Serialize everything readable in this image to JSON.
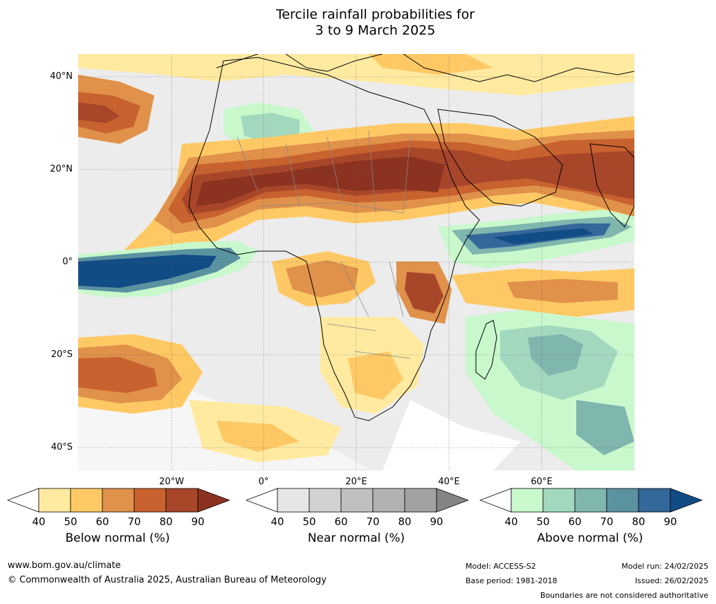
{
  "title": {
    "line1": "Tercile rainfall probabilities for",
    "line2": "3 to 9 March 2025"
  },
  "map": {
    "lat_labels": [
      "40°N",
      "20°N",
      "0°",
      "20°S",
      "40°S"
    ],
    "lon_labels": [
      "20°W",
      "0°",
      "20°E",
      "40°E",
      "60°E"
    ]
  },
  "colorbars": [
    {
      "title": "Below normal (%)",
      "ticks": [
        "40",
        "50",
        "60",
        "70",
        "80",
        "90"
      ],
      "colors": [
        "#ffffff",
        "#ffeaa0",
        "#fec965",
        "#e0914a",
        "#c8622e",
        "#a8462a",
        "#8c3220"
      ]
    },
    {
      "title": "Near normal (%)",
      "ticks": [
        "40",
        "50",
        "60",
        "70",
        "80",
        "90"
      ],
      "colors": [
        "#ffffff",
        "#e6e6e6",
        "#d2d2d2",
        "#c0c0c0",
        "#b2b2b2",
        "#a2a2a2",
        "#848484"
      ]
    },
    {
      "title": "Above normal (%)",
      "ticks": [
        "40",
        "50",
        "60",
        "70",
        "80",
        "90"
      ],
      "colors": [
        "#ffffff",
        "#c8f8cc",
        "#a2d8be",
        "#7fb6ae",
        "#5b92a0",
        "#34679a",
        "#124c86"
      ]
    }
  ],
  "footer": {
    "website": "www.bom.gov.au/climate",
    "copyright": "© Commonwealth of Australia 2025, Australian Bureau of Meteorology",
    "model": "Model: ACCESS-S2",
    "base_period": "Base period: 1981-2018",
    "model_run": "Model run: 24/02/2025",
    "issued": "Issued: 26/02/2025",
    "disclaimer": "Boundaries are not considered authoritative"
  }
}
